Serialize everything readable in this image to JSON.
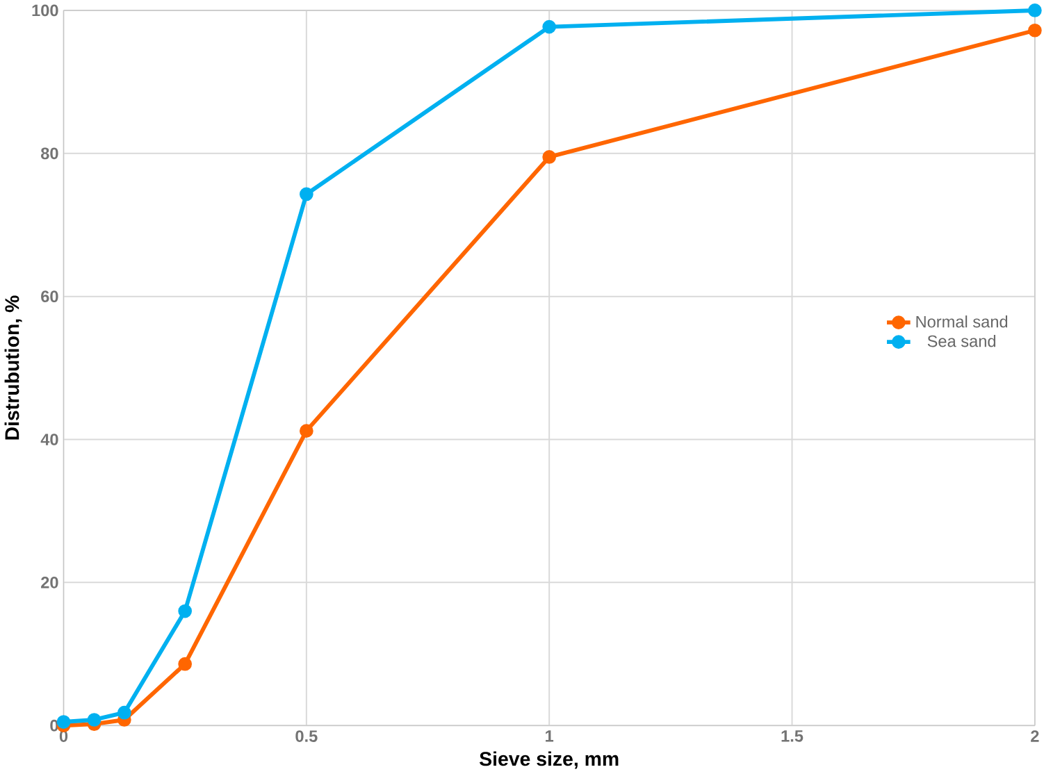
{
  "chart_data": {
    "type": "line",
    "xlabel": "Sieve size, mm",
    "ylabel": "Distrubution, %",
    "xlim": [
      0,
      2
    ],
    "xticks": [
      0,
      0.5,
      1,
      1.5,
      2
    ],
    "ylim": [
      0,
      100
    ],
    "yticks": [
      0,
      20,
      40,
      60,
      80,
      100
    ],
    "grid": true,
    "legend": "right",
    "marker": "circle",
    "line_style": "solid",
    "series": [
      {
        "name": "Normal sand",
        "color": "#ff6600",
        "x": [
          0,
          0.063,
          0.125,
          0.25,
          0.5,
          1,
          2
        ],
        "values": [
          0,
          0.2,
          0.8,
          8.6,
          41.2,
          79.5,
          97.2
        ]
      },
      {
        "name": "Sea sand",
        "color": "#00b0f0",
        "x": [
          0,
          0.063,
          0.125,
          0.25,
          0.5,
          1,
          2
        ],
        "values": [
          0.5,
          0.8,
          1.8,
          16,
          74.3,
          97.7,
          100
        ]
      }
    ]
  }
}
